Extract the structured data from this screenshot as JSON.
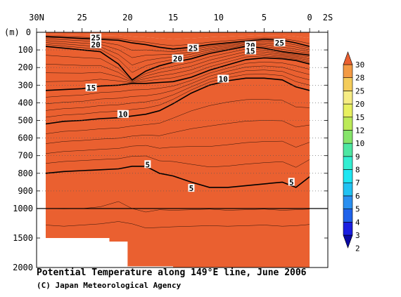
{
  "chart_data": {
    "type": "heatmap",
    "title": "Potential Temperature along 149°E line, June 2006",
    "credit": "(C) Japan Meteorological Agency",
    "x_axis": {
      "quantity": "latitude",
      "range_deg_north": [
        30,
        -2
      ],
      "ticks": [
        {
          "value": 30,
          "label": "30N"
        },
        {
          "value": 25,
          "label": "25"
        },
        {
          "value": 20,
          "label": "20"
        },
        {
          "value": 15,
          "label": "15"
        },
        {
          "value": 10,
          "label": "10"
        },
        {
          "value": 5,
          "label": "5"
        },
        {
          "value": 0,
          "label": "0"
        },
        {
          "value": -2,
          "label": "2S"
        }
      ],
      "position": "top"
    },
    "y_axis": {
      "unit_label": "(m)",
      "upper_ticks": [
        0,
        100,
        200,
        300,
        400,
        500,
        600,
        700,
        800,
        900,
        1000
      ],
      "lower_ticks": [
        1500,
        2000
      ],
      "upper_range": [
        0,
        1000
      ],
      "lower_range": [
        1000,
        2000
      ],
      "scale_break_at": 1000,
      "inverted": true
    },
    "colorbar": {
      "levels": [
        2,
        3,
        4,
        5,
        6,
        7,
        8,
        9,
        10,
        12,
        15,
        20,
        25,
        28,
        30
      ],
      "colors": [
        "#0a08a3",
        "#1a1ee0",
        "#1f62ea",
        "#2a8ff0",
        "#22c2f2",
        "#1fe6f2",
        "#33eed2",
        "#4ee6a2",
        "#86e46a",
        "#bcea58",
        "#e8f060",
        "#f6ec84",
        "#f4cc5a",
        "#f39a44",
        "#ea6030"
      ],
      "placement": "right",
      "extend": "both"
    },
    "sections": [
      {
        "lat": 29.0,
        "isotherm_depths_m": {
          "25": 25,
          "20": 80,
          "15": 330,
          "10": 520,
          "5": 800,
          "4": 1000,
          "3": 1280
        }
      },
      {
        "lat": 27.0,
        "isotherm_depths_m": {
          "25": 30,
          "20": 90,
          "15": 325,
          "10": 505,
          "5": 790,
          "4": 1005,
          "3": 1300
        }
      },
      {
        "lat": 25.0,
        "isotherm_depths_m": {
          "25": 35,
          "20": 100,
          "15": 320,
          "10": 500,
          "5": 785,
          "4": 1000,
          "3": 1280
        }
      },
      {
        "lat": 23.0,
        "isotherm_depths_m": {
          "25": 40,
          "20": 110,
          "15": 305,
          "10": 490,
          "5": 780,
          "4": 990,
          "3": 1260
        }
      },
      {
        "lat": 21.0,
        "isotherm_depths_m": {
          "25": 45,
          "20": 180,
          "15": 300,
          "10": 485,
          "5": 775,
          "4": 960,
          "3": 1220
        }
      },
      {
        "lat": 19.5,
        "isotherm_depths_m": {
          "25": 60,
          "20": 270,
          "15": 290,
          "10": 475,
          "5": 760,
          "4": 1000,
          "3": 1260
        }
      },
      {
        "lat": 18.0,
        "isotherm_depths_m": {
          "25": 70,
          "20": 220,
          "15": 290,
          "10": 465,
          "5": 760,
          "4": 1060,
          "3": 1330
        }
      },
      {
        "lat": 16.5,
        "isotherm_depths_m": {
          "25": 85,
          "20": 190,
          "15": 285,
          "10": 445,
          "5": 800,
          "4": 1020,
          "3": 1320
        }
      },
      {
        "lat": 15.0,
        "isotherm_depths_m": {
          "25": 95,
          "20": 170,
          "15": 280,
          "10": 405,
          "5": 815,
          "4": 1030,
          "3": 1310
        }
      },
      {
        "lat": 13.0,
        "isotherm_depths_m": {
          "25": 85,
          "20": 150,
          "15": 255,
          "10": 345,
          "5": 850,
          "4": 1020,
          "3": 1300
        }
      },
      {
        "lat": 11.0,
        "isotherm_depths_m": {
          "25": 70,
          "20": 120,
          "15": 215,
          "10": 300,
          "5": 880,
          "4": 1010,
          "3": 1290
        }
      },
      {
        "lat": 9.0,
        "isotherm_depths_m": {
          "25": 60,
          "20": 100,
          "15": 185,
          "10": 275,
          "5": 880,
          "4": 1030,
          "3": 1300
        }
      },
      {
        "lat": 7.0,
        "isotherm_depths_m": {
          "25": 50,
          "20": 80,
          "15": 155,
          "10": 260,
          "5": 870,
          "4": 1020,
          "3": 1290
        }
      },
      {
        "lat": 5.0,
        "isotherm_depths_m": {
          "25": 40,
          "20": 90,
          "15": 145,
          "10": 260,
          "5": 860,
          "4": 1010,
          "3": 1280
        }
      },
      {
        "lat": 3.0,
        "isotherm_depths_m": {
          "25": 45,
          "20": 110,
          "15": 150,
          "10": 270,
          "5": 850,
          "4": 1030,
          "3": 1300
        }
      },
      {
        "lat": 1.5,
        "isotherm_depths_m": {
          "25": 60,
          "20": 120,
          "15": 160,
          "10": 310,
          "5": 880,
          "4": 1020,
          "3": 1290
        }
      },
      {
        "lat": 0.0,
        "isotherm_depths_m": {
          "25": 80,
          "20": 130,
          "15": 180,
          "10": 330,
          "5": 820,
          "4": 1010,
          "3": 1270
        }
      }
    ],
    "contour_labels": [
      {
        "value": "25",
        "lat": 23.5,
        "depth_m": 30
      },
      {
        "value": "20",
        "lat": 23.5,
        "depth_m": 70
      },
      {
        "value": "25",
        "lat": 12.8,
        "depth_m": 90
      },
      {
        "value": "20",
        "lat": 6.5,
        "depth_m": 75
      },
      {
        "value": "15",
        "lat": 6.5,
        "depth_m": 105
      },
      {
        "value": "25",
        "lat": 3.3,
        "depth_m": 60
      },
      {
        "value": "20",
        "lat": 14.5,
        "depth_m": 150
      },
      {
        "value": "10",
        "lat": 9.5,
        "depth_m": 265
      },
      {
        "value": "15",
        "lat": 24.0,
        "depth_m": 315
      },
      {
        "value": "10",
        "lat": 20.5,
        "depth_m": 465
      },
      {
        "value": "5",
        "lat": 17.8,
        "depth_m": 750
      },
      {
        "value": "5",
        "lat": 13.0,
        "depth_m": 885
      },
      {
        "value": "5",
        "lat": 2.0,
        "depth_m": 850
      }
    ],
    "no_data": [
      {
        "lat_from": 29.5,
        "lat_to": 22.0,
        "depth_from_m": 1500,
        "depth_to_m": 2000
      },
      {
        "lat_from": 22.0,
        "lat_to": 20.0,
        "depth_from_m": 1560,
        "depth_to_m": 2000
      },
      {
        "lat_from": 20.0,
        "lat_to": 15.0,
        "depth_from_m": 1980,
        "depth_to_m": 2000
      }
    ]
  }
}
